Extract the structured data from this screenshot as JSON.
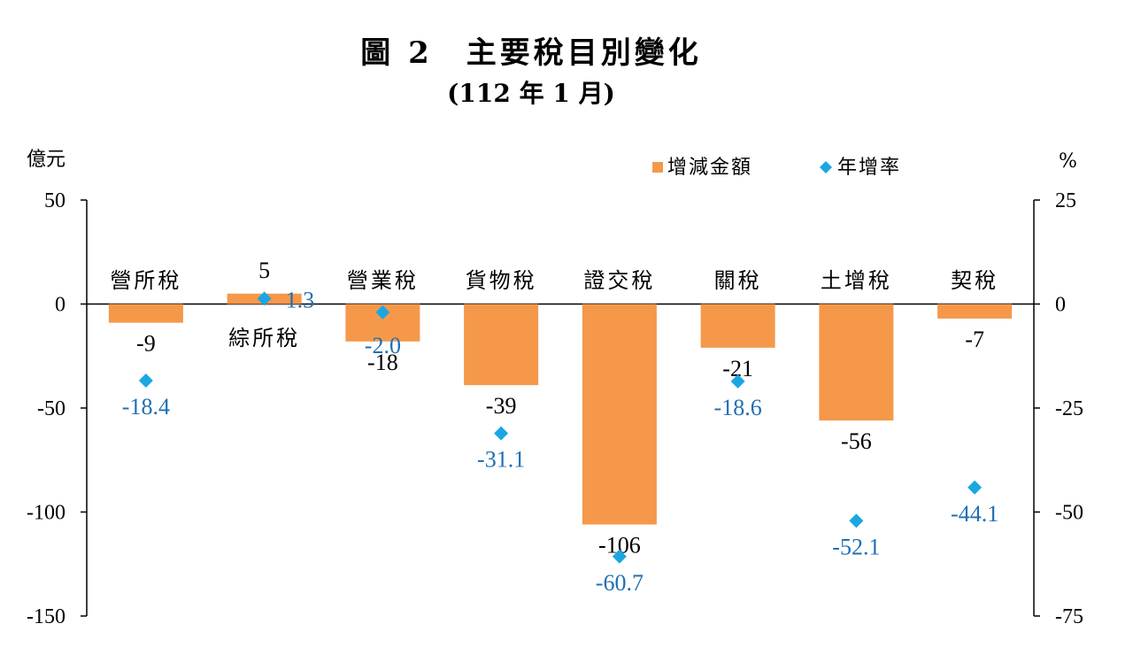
{
  "title": "圖 2　主要稅目別變化",
  "subtitle": "(112 年 1 月)",
  "chart_data": {
    "type": "bar",
    "left_unit": "億元",
    "right_unit": "%",
    "left_ylim": [
      -150,
      50
    ],
    "right_ylim": [
      -75,
      25
    ],
    "left_ticks": [
      "50",
      "0",
      "-50",
      "-100",
      "-150"
    ],
    "right_ticks": [
      "25",
      "0",
      "-25",
      "-50",
      "-75"
    ],
    "categories": [
      "營所稅",
      "綜所稅",
      "營業稅",
      "貨物稅",
      "證交稅",
      "關稅",
      "土增稅",
      "契稅"
    ],
    "series": [
      {
        "name": "增減金額",
        "kind": "bar",
        "axis": "left",
        "color": "#f5984a",
        "values": [
          -9,
          5,
          -18,
          -39,
          -106,
          -21,
          -56,
          -7
        ],
        "labels": [
          "-9",
          "5",
          "-18",
          "-39",
          "-106",
          "-21",
          "-56",
          "-7"
        ]
      },
      {
        "name": "年增率",
        "kind": "marker",
        "axis": "right",
        "color": "#1aa7e1",
        "values": [
          -18.4,
          1.3,
          -2.0,
          -31.1,
          -60.7,
          -18.6,
          -52.1,
          -44.1
        ],
        "labels": [
          "-18.4",
          "1.3",
          "-2.0",
          "-31.1",
          "-60.7",
          "-18.6",
          "-52.1",
          "-44.1"
        ]
      }
    ],
    "grid": false,
    "legend_position": "top-right"
  }
}
